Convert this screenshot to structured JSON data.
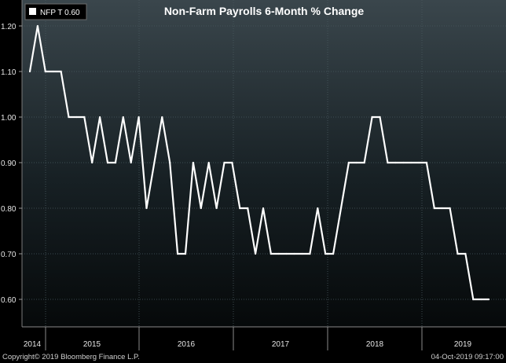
{
  "chart_data": {
    "type": "line",
    "title": "Non-Farm Payrolls 6-Month % Change",
    "xlabel": "",
    "ylabel": "",
    "ylim": [
      0.55,
      1.25
    ],
    "y_ticks": [
      "1.20",
      "1.10",
      "1.00",
      "0.90",
      "0.80",
      "0.70",
      "0.60"
    ],
    "x_tick_labels": [
      "2014",
      "2015",
      "2016",
      "2017",
      "2018",
      "2019"
    ],
    "legend": {
      "entries": [
        "NFP T 0.60"
      ],
      "placement": "top-left"
    },
    "grid": true,
    "series": [
      {
        "name": "NFP T",
        "color": "#ffffff",
        "values": [
          1.1,
          1.2,
          1.1,
          1.1,
          1.1,
          1.0,
          1.0,
          1.0,
          0.9,
          1.0,
          0.9,
          0.9,
          1.0,
          0.9,
          1.0,
          0.8,
          0.9,
          1.0,
          0.9,
          0.7,
          0.7,
          0.9,
          0.8,
          0.9,
          0.8,
          0.9,
          0.9,
          0.8,
          0.8,
          0.7,
          0.8,
          0.7,
          0.7,
          0.7,
          0.7,
          0.7,
          0.7,
          0.8,
          0.7,
          0.7,
          0.8,
          0.9,
          0.9,
          0.9,
          1.0,
          1.0,
          0.9,
          0.9,
          0.9,
          0.9,
          0.9,
          0.9,
          0.8,
          0.8,
          0.8,
          0.7,
          0.7,
          0.6,
          0.6,
          0.6
        ]
      }
    ]
  },
  "footer": {
    "copyright": "Copyright© 2019 Bloomberg Finance L.P.",
    "timestamp": "04-Oct-2019 09:17:00"
  }
}
